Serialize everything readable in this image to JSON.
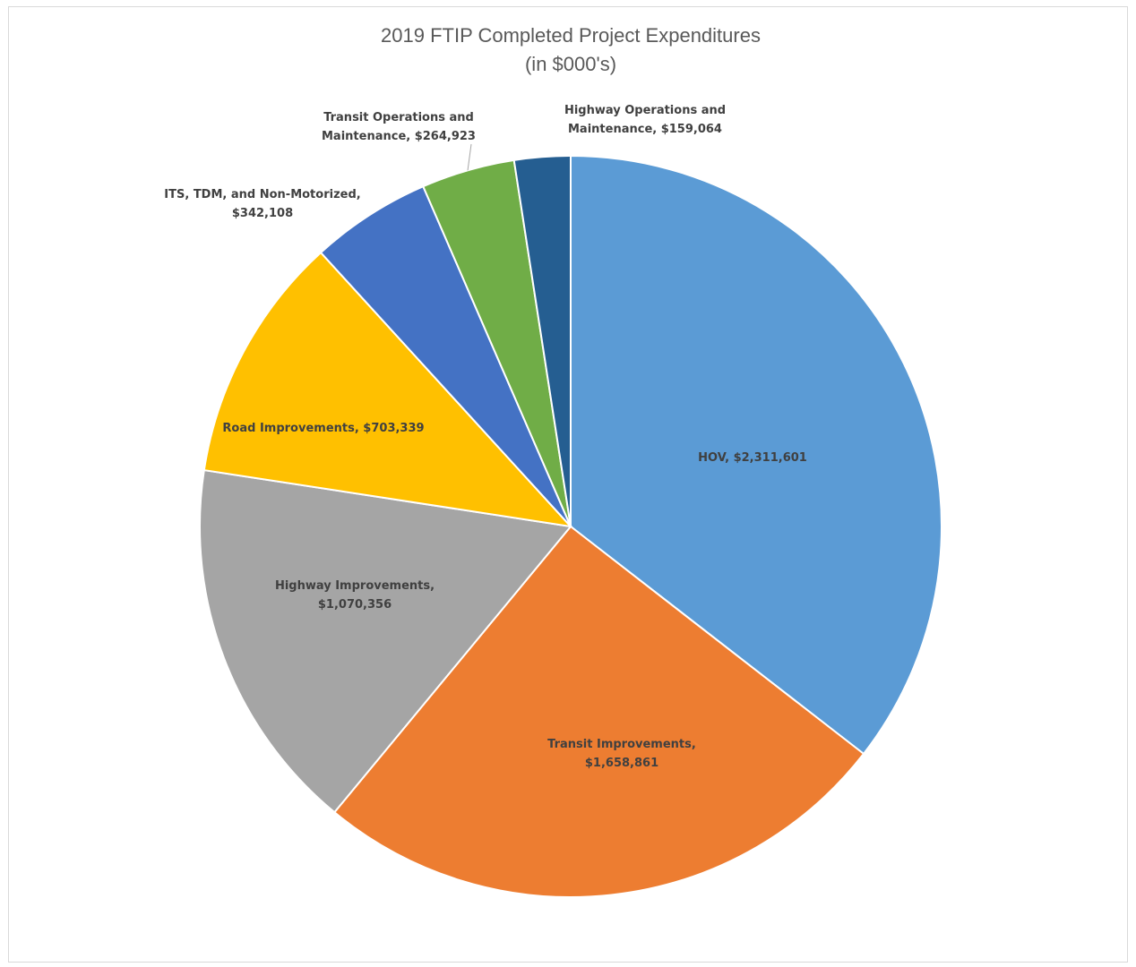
{
  "chart_data": {
    "type": "pie",
    "title": [
      "2019 FTIP Completed Project Expenditures",
      "(in $000's)"
    ],
    "slices": [
      {
        "name": "HOV",
        "value": 2311601,
        "label": [
          "HOV, $2,311,601"
        ],
        "color": "#5B9BD5"
      },
      {
        "name": "Transit Improvements",
        "value": 1658861,
        "label": [
          "Transit Improvements,",
          "$1,658,861"
        ],
        "color": "#ED7D31"
      },
      {
        "name": "Highway Improvements",
        "value": 1070356,
        "label": [
          "Highway Improvements,",
          "$1,070,356"
        ],
        "color": "#A5A5A5"
      },
      {
        "name": "Road Improvements",
        "value": 703339,
        "label": [
          "Road Improvements, $703,339"
        ],
        "color": "#FFC000"
      },
      {
        "name": "ITS, TDM, and Non-Motorized",
        "value": 342108,
        "label": [
          "ITS, TDM, and Non-Motorized,",
          "$342,108"
        ],
        "color": "#4472C4"
      },
      {
        "name": "Transit Operations and Maintenance",
        "value": 264923,
        "label": [
          "Transit Operations and",
          "Maintenance, $264,923"
        ],
        "color": "#70AD47"
      },
      {
        "name": "Highway Operations and Maintenance",
        "value": 159064,
        "label": [
          "Highway Operations and",
          "Maintenance, $159,064"
        ],
        "color": "#255E91"
      }
    ],
    "legend": "none",
    "start_angle": "12 o'clock",
    "direction": "clockwise"
  }
}
